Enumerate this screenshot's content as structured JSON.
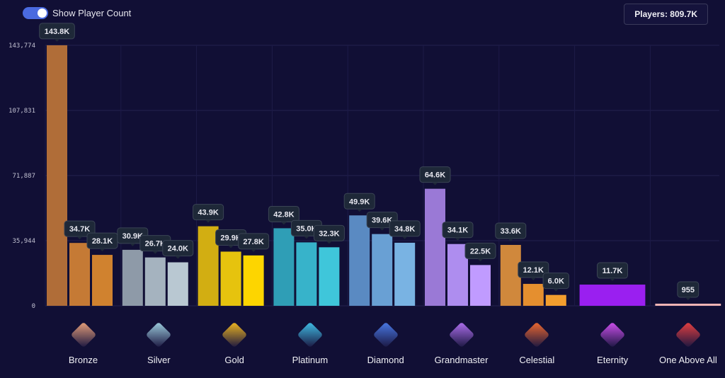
{
  "toggle": {
    "label": "Show Player Count",
    "on": true
  },
  "players": {
    "label": "Players: 809.7K"
  },
  "chart_data": {
    "type": "bar",
    "ylim": [
      0,
      143774
    ],
    "yticks": [
      0,
      35944,
      71887,
      107831,
      143774
    ],
    "ytick_labels": [
      "0",
      "35,944",
      "71,887",
      "107,831",
      "143,774"
    ],
    "grid": true,
    "categories": [
      "Bronze",
      "Silver",
      "Gold",
      "Platinum",
      "Diamond",
      "Grandmaster",
      "Celestial",
      "Eternity",
      "One Above All"
    ],
    "groups": [
      {
        "name": "Bronze",
        "values": [
          143800,
          34700,
          28100
        ],
        "labels": [
          "143.8K",
          "34.7K",
          "28.1K"
        ],
        "colors": [
          "#b06d38",
          "#c57a35",
          "#d0822f"
        ],
        "icon": "bronze-rank-icon",
        "icon_color": "#e8a07a"
      },
      {
        "name": "Silver",
        "values": [
          30900,
          26700,
          24000
        ],
        "labels": [
          "30.9K",
          "26.7K",
          "24.0K"
        ],
        "colors": [
          "#8e9aa8",
          "#a5b3bf",
          "#b9c8d2"
        ],
        "icon": "silver-rank-icon",
        "icon_color": "#9fd0e0"
      },
      {
        "name": "Gold",
        "values": [
          43900,
          29900,
          27800
        ],
        "labels": [
          "43.9K",
          "29.9K",
          "27.8K"
        ],
        "colors": [
          "#d2ae12",
          "#e6c30e",
          "#fdd500"
        ],
        "icon": "gold-rank-icon",
        "icon_color": "#f2b820"
      },
      {
        "name": "Platinum",
        "values": [
          42800,
          35000,
          32300
        ],
        "labels": [
          "42.8K",
          "35.0K",
          "32.3K"
        ],
        "colors": [
          "#2f9eb6",
          "#37b3ca",
          "#3fc6da"
        ],
        "icon": "platinum-rank-icon",
        "icon_color": "#40c0e8"
      },
      {
        "name": "Diamond",
        "values": [
          49900,
          39600,
          34800
        ],
        "labels": [
          "49.9K",
          "39.6K",
          "34.8K"
        ],
        "colors": [
          "#5a8ac2",
          "#69a0d4",
          "#79b3e3"
        ],
        "icon": "diamond-rank-icon",
        "icon_color": "#4a7ae8"
      },
      {
        "name": "Grandmaster",
        "values": [
          64600,
          34100,
          22500
        ],
        "labels": [
          "64.6K",
          "34.1K",
          "22.5K"
        ],
        "colors": [
          "#9a79d6",
          "#ae8def",
          "#c09bff"
        ],
        "icon": "grandmaster-rank-icon",
        "icon_color": "#b070f0"
      },
      {
        "name": "Celestial",
        "values": [
          33600,
          12100,
          6000
        ],
        "labels": [
          "33.6K",
          "12.1K",
          "6.0K"
        ],
        "colors": [
          "#d0883c",
          "#e58f2f",
          "#f39e2e"
        ],
        "icon": "celestial-rank-icon",
        "icon_color": "#f06a30"
      },
      {
        "name": "Eternity",
        "values": [
          11700
        ],
        "labels": [
          "11.7K"
        ],
        "colors": [
          "#9a1ff0"
        ],
        "icon": "eternity-rank-icon",
        "icon_color": "#d050f0"
      },
      {
        "name": "One Above All",
        "values": [
          955
        ],
        "labels": [
          "955"
        ],
        "colors": [
          "#f0b4b4"
        ],
        "icon": "one-above-all-rank-icon",
        "icon_color": "#e84040"
      }
    ]
  }
}
